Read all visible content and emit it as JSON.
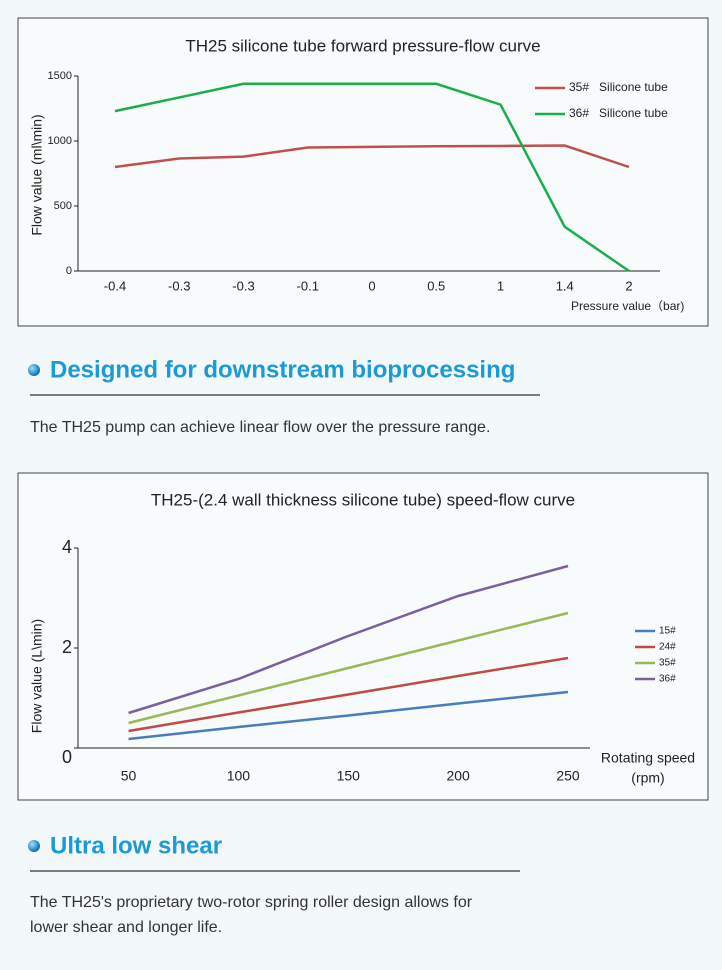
{
  "chart_data": [
    {
      "type": "line",
      "title": "TH25 silicone tube forward pressure-flow curve",
      "y_label": "Flow value (ml\\min)",
      "x_label": "Pressure value（bar)",
      "categories": [
        "-0.4",
        "-0.3",
        "-0.3",
        "-0.1",
        "0",
        "0.5",
        "1",
        "1.4",
        "2"
      ],
      "ylim": [
        0,
        1500
      ],
      "yticks": [
        0,
        500,
        1000,
        1500
      ],
      "series": [
        {
          "name": "35#   Silicone tube",
          "color": "#c0504d",
          "values": [
            800,
            865,
            880,
            950,
            955,
            960,
            962,
            965,
            800
          ]
        },
        {
          "name": "36#   Silicone tube",
          "color": "#1aae4a",
          "values": [
            1230,
            1335,
            1440,
            1440,
            1440,
            1440,
            1280,
            340,
            0
          ]
        }
      ]
    },
    {
      "type": "line",
      "title": "TH25-(2.4 wall thickness silicone tube) speed-flow curve",
      "y_label": "Flow value (L\\min)",
      "x_label": [
        "Rotating speed",
        "(rpm)"
      ],
      "x": [
        50,
        100,
        150,
        200,
        250
      ],
      "xlim": [
        27,
        260
      ],
      "xticks": [
        50,
        100,
        150,
        200,
        250
      ],
      "ylim": [
        0,
        4
      ],
      "yticks": [
        0,
        2,
        4
      ],
      "series": [
        {
          "name": "15#",
          "color": "#4a7ebb",
          "values": [
            0.18,
            0.42,
            0.65,
            0.89,
            1.12
          ]
        },
        {
          "name": "24#",
          "color": "#be4b48",
          "values": [
            0.34,
            0.71,
            1.07,
            1.44,
            1.8
          ]
        },
        {
          "name": "35#",
          "color": "#98b954",
          "values": [
            0.5,
            1.05,
            1.6,
            2.15,
            2.7
          ]
        },
        {
          "name": "36#",
          "color": "#7d5fa0",
          "values": [
            0.7,
            1.38,
            2.24,
            3.04,
            3.64
          ]
        }
      ]
    }
  ],
  "sections": [
    {
      "heading": "Designed for downstream bioprocessing",
      "text": [
        "The TH25 pump can achieve linear flow over the pressure range."
      ]
    },
    {
      "heading": "Ultra low shear",
      "text": [
        "The TH25's proprietary two-rotor spring roller design allows for",
        "lower shear and longer life."
      ]
    }
  ]
}
